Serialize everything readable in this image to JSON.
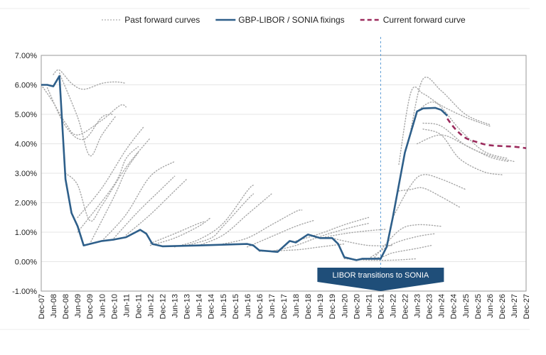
{
  "chart_data": {
    "type": "line",
    "title": "",
    "xlabel": "",
    "ylabel": "",
    "ylim": [
      -1,
      7
    ],
    "xlim": [
      "2007-12",
      "2027-12"
    ],
    "y_ticks": [
      "7.00%",
      "6.00%",
      "5.00%",
      "4.00%",
      "3.00%",
      "2.00%",
      "1.00%",
      "0.00%",
      "-1.00%"
    ],
    "y_tick_values": [
      7,
      6,
      5,
      4,
      3,
      2,
      1,
      0,
      -1
    ],
    "x_ticks": [
      "Dec-07",
      "Jun-08",
      "Dec-08",
      "Jun-09",
      "Dec-09",
      "Jun-10",
      "Dec-10",
      "Jun-11",
      "Dec-11",
      "Jun-12",
      "Dec-12",
      "Jun-13",
      "Dec-13",
      "Jun-14",
      "Dec-14",
      "Jun-15",
      "Dec-15",
      "Jun-16",
      "Dec-16",
      "Jun-17",
      "Dec-17",
      "Jun-18",
      "Dec-18",
      "Jun-19",
      "Dec-19",
      "Jun-20",
      "Dec-20",
      "Jun-21",
      "Dec-21",
      "Jun-22",
      "Dec-22",
      "Jun-23",
      "Dec-23",
      "Jun-24",
      "Dec-24",
      "Jun-25",
      "Dec-25",
      "Jun-26",
      "Dec-26",
      "Jun-27",
      "Dec-27"
    ],
    "grid": true,
    "legend_position": "top",
    "legend": [
      {
        "name": "Past forward curves",
        "style": "dotted",
        "color": "#a6a6a6"
      },
      {
        "name": "GBP-LIBOR / SONIA fixings",
        "style": "solid",
        "color": "#2e5f8a"
      },
      {
        "name": "Current forward curve",
        "style": "dashed",
        "color": "#9b2a5c"
      }
    ],
    "annotation": {
      "text": "LIBOR transitions to SONIA",
      "date": "2021-12",
      "color": "#1f4e79"
    },
    "series": [
      {
        "name": "GBP-LIBOR / SONIA fixings",
        "points": [
          [
            "2007-12",
            6.0
          ],
          [
            "2008-03",
            6.0
          ],
          [
            "2008-06",
            5.95
          ],
          [
            "2008-09",
            6.3
          ],
          [
            "2008-12",
            2.8
          ],
          [
            "2009-03",
            1.65
          ],
          [
            "2009-06",
            1.2
          ],
          [
            "2009-09",
            0.55
          ],
          [
            "2010-06",
            0.7
          ],
          [
            "2010-12",
            0.75
          ],
          [
            "2011-06",
            0.83
          ],
          [
            "2012-01",
            1.08
          ],
          [
            "2012-04",
            0.95
          ],
          [
            "2012-07",
            0.6
          ],
          [
            "2012-12",
            0.52
          ],
          [
            "2014-06",
            0.55
          ],
          [
            "2016-06",
            0.6
          ],
          [
            "2016-09",
            0.55
          ],
          [
            "2016-12",
            0.38
          ],
          [
            "2017-09",
            0.33
          ],
          [
            "2018-03",
            0.7
          ],
          [
            "2018-06",
            0.65
          ],
          [
            "2018-12",
            0.92
          ],
          [
            "2019-06",
            0.8
          ],
          [
            "2019-12",
            0.8
          ],
          [
            "2020-03",
            0.6
          ],
          [
            "2020-06",
            0.15
          ],
          [
            "2020-12",
            0.05
          ],
          [
            "2021-03",
            0.1
          ],
          [
            "2021-12",
            0.1
          ],
          [
            "2022-03",
            0.5
          ],
          [
            "2022-06",
            1.5
          ],
          [
            "2022-12",
            3.7
          ],
          [
            "2023-06",
            5.1
          ],
          [
            "2023-09",
            5.2
          ],
          [
            "2024-03",
            5.22
          ],
          [
            "2024-06",
            5.15
          ],
          [
            "2024-09",
            4.95
          ]
        ]
      },
      {
        "name": "Current forward curve",
        "points": [
          [
            "2024-09",
            4.85
          ],
          [
            "2025-01",
            4.5
          ],
          [
            "2025-06",
            4.2
          ],
          [
            "2025-12",
            4.05
          ],
          [
            "2026-06",
            3.95
          ],
          [
            "2027-06",
            3.9
          ],
          [
            "2027-12",
            3.85
          ]
        ]
      }
    ],
    "past_forward_curves": [
      [
        [
          "2007-12",
          6.0
        ],
        [
          "2008-06",
          5.4
        ],
        [
          "2008-12",
          4.7
        ],
        [
          "2009-06",
          4.3
        ],
        [
          "2010-06",
          4.8
        ],
        [
          "2011-03",
          5.3
        ],
        [
          "2011-06",
          5.25
        ]
      ],
      [
        [
          "2008-06",
          6.35
        ],
        [
          "2008-09",
          6.5
        ],
        [
          "2009-03",
          6.05
        ],
        [
          "2009-09",
          5.85
        ],
        [
          "2010-06",
          6.05
        ],
        [
          "2011-01",
          6.1
        ],
        [
          "2011-06",
          6.05
        ]
      ],
      [
        [
          "2008-03",
          5.9
        ],
        [
          "2008-12",
          4.6
        ],
        [
          "2009-09",
          4.15
        ],
        [
          "2010-06",
          4.9
        ],
        [
          "2010-12",
          5.0
        ]
      ],
      [
        [
          "2008-09",
          6.4
        ],
        [
          "2009-06",
          4.9
        ],
        [
          "2009-12",
          3.6
        ],
        [
          "2010-06",
          4.3
        ],
        [
          "2011-01",
          4.95
        ]
      ],
      [
        [
          "2008-12",
          3.0
        ],
        [
          "2009-06",
          2.6
        ],
        [
          "2009-12",
          1.4
        ],
        [
          "2010-06",
          1.9
        ],
        [
          "2011-06",
          3.2
        ],
        [
          "2012-06",
          4.2
        ]
      ],
      [
        [
          "2009-06",
          1.5
        ],
        [
          "2010-06",
          2.5
        ],
        [
          "2011-06",
          3.8
        ],
        [
          "2012-03",
          4.6
        ]
      ],
      [
        [
          "2009-06",
          1.0
        ],
        [
          "2010-12",
          2.6
        ],
        [
          "2011-06",
          3.5
        ],
        [
          "2011-12",
          3.9
        ]
      ],
      [
        [
          "2009-12",
          0.6
        ],
        [
          "2010-12",
          2.2
        ],
        [
          "2011-06",
          3.1
        ],
        [
          "2011-12",
          3.7
        ]
      ],
      [
        [
          "2010-06",
          0.7
        ],
        [
          "2011-06",
          1.6
        ],
        [
          "2012-06",
          2.9
        ],
        [
          "2013-06",
          3.4
        ]
      ],
      [
        [
          "2010-12",
          0.8
        ],
        [
          "2011-12",
          1.7
        ],
        [
          "2012-12",
          2.5
        ],
        [
          "2013-06",
          2.9
        ]
      ],
      [
        [
          "2011-06",
          0.9
        ],
        [
          "2012-06",
          1.6
        ],
        [
          "2013-06",
          2.4
        ],
        [
          "2013-12",
          2.8
        ]
      ],
      [
        [
          "2012-06",
          0.55
        ],
        [
          "2013-06",
          0.8
        ],
        [
          "2014-06",
          1.2
        ],
        [
          "2014-12",
          1.5
        ]
      ],
      [
        [
          "2012-06",
          0.62
        ],
        [
          "2013-06",
          0.95
        ],
        [
          "2014-06",
          1.3
        ],
        [
          "2014-09",
          1.35
        ]
      ],
      [
        [
          "2013-06",
          0.5
        ],
        [
          "2014-06",
          0.75
        ],
        [
          "2015-06",
          1.3
        ],
        [
          "2016-06",
          2.4
        ],
        [
          "2016-09",
          2.6
        ]
      ],
      [
        [
          "2013-12",
          0.55
        ],
        [
          "2014-12",
          0.8
        ],
        [
          "2015-06",
          1.2
        ],
        [
          "2016-06",
          2.1
        ],
        [
          "2016-09",
          2.3
        ]
      ],
      [
        [
          "2014-06",
          0.55
        ],
        [
          "2015-06",
          0.9
        ],
        [
          "2016-06",
          1.6
        ],
        [
          "2017-06",
          2.3
        ]
      ],
      [
        [
          "2015-06",
          0.6
        ],
        [
          "2016-06",
          0.8
        ],
        [
          "2017-06",
          1.25
        ],
        [
          "2018-06",
          1.7
        ],
        [
          "2018-09",
          1.75
        ]
      ],
      [
        [
          "2016-06",
          0.5
        ],
        [
          "2017-06",
          0.85
        ],
        [
          "2018-06",
          1.2
        ],
        [
          "2019-03",
          1.4
        ]
      ],
      [
        [
          "2016-12",
          0.35
        ],
        [
          "2018-06",
          0.4
        ],
        [
          "2019-06",
          0.5
        ],
        [
          "2020-06",
          0.6
        ]
      ],
      [
        [
          "2017-06",
          0.35
        ],
        [
          "2018-06",
          0.55
        ],
        [
          "2019-06",
          0.85
        ],
        [
          "2020-06",
          1.1
        ],
        [
          "2021-06",
          1.3
        ]
      ],
      [
        [
          "2018-06",
          0.7
        ],
        [
          "2019-06",
          0.95
        ],
        [
          "2020-06",
          1.25
        ],
        [
          "2021-06",
          1.5
        ]
      ],
      [
        [
          "2019-06",
          0.8
        ],
        [
          "2020-06",
          0.95
        ],
        [
          "2021-06",
          1.05
        ],
        [
          "2022-03",
          1.1
        ]
      ],
      [
        [
          "2019-12",
          0.8
        ],
        [
          "2020-06",
          0.7
        ],
        [
          "2021-06",
          0.55
        ],
        [
          "2022-06",
          0.55
        ]
      ],
      [
        [
          "2020-06",
          0.1
        ],
        [
          "2021-06",
          0.05
        ],
        [
          "2022-06",
          0.05
        ],
        [
          "2023-06",
          0.1
        ]
      ],
      [
        [
          "2020-12",
          0.05
        ],
        [
          "2021-12",
          0.15
        ],
        [
          "2022-06",
          0.3
        ],
        [
          "2023-06",
          0.45
        ],
        [
          "2024-01",
          0.55
        ]
      ],
      [
        [
          "2021-06",
          0.1
        ],
        [
          "2022-06",
          0.6
        ],
        [
          "2023-06",
          0.85
        ],
        [
          "2024-03",
          0.95
        ]
      ],
      [
        [
          "2021-09",
          0.15
        ],
        [
          "2022-09",
          1.05
        ],
        [
          "2023-06",
          1.25
        ],
        [
          "2024-06",
          1.2
        ]
      ],
      [
        [
          "2022-06",
          1.5
        ],
        [
          "2023-03",
          2.6
        ],
        [
          "2023-09",
          2.95
        ],
        [
          "2024-06",
          2.8
        ],
        [
          "2025-06",
          2.45
        ]
      ],
      [
        [
          "2022-09",
          2.4
        ],
        [
          "2023-03",
          2.45
        ],
        [
          "2023-09",
          2.5
        ],
        [
          "2024-06",
          2.2
        ],
        [
          "2025-03",
          1.85
        ]
      ],
      [
        [
          "2022-09",
          3.3
        ],
        [
          "2023-03",
          5.75
        ],
        [
          "2023-09",
          5.7
        ],
        [
          "2024-06",
          5.3
        ],
        [
          "2025-06",
          4.9
        ],
        [
          "2026-06",
          4.6
        ]
      ],
      [
        [
          "2023-03",
          4.5
        ],
        [
          "2023-09",
          6.2
        ],
        [
          "2024-06",
          5.8
        ],
        [
          "2025-06",
          5.0
        ],
        [
          "2026-06",
          4.65
        ]
      ],
      [
        [
          "2023-06",
          5.1
        ],
        [
          "2024-03",
          5.4
        ],
        [
          "2025-03",
          4.5
        ],
        [
          "2026-03",
          3.75
        ],
        [
          "2027-03",
          3.5
        ]
      ],
      [
        [
          "2023-09",
          4.7
        ],
        [
          "2024-06",
          4.6
        ],
        [
          "2025-06",
          3.95
        ],
        [
          "2026-06",
          3.6
        ],
        [
          "2027-06",
          3.4
        ]
      ],
      [
        [
          "2023-09",
          4.5
        ],
        [
          "2024-06",
          4.3
        ],
        [
          "2025-03",
          3.5
        ],
        [
          "2026-03",
          3.05
        ],
        [
          "2026-12",
          2.95
        ]
      ],
      [
        [
          "2023-06",
          4.0
        ],
        [
          "2024-06",
          4.3
        ],
        [
          "2025-06",
          3.95
        ],
        [
          "2026-06",
          3.55
        ],
        [
          "2027-03",
          3.4
        ]
      ]
    ]
  }
}
